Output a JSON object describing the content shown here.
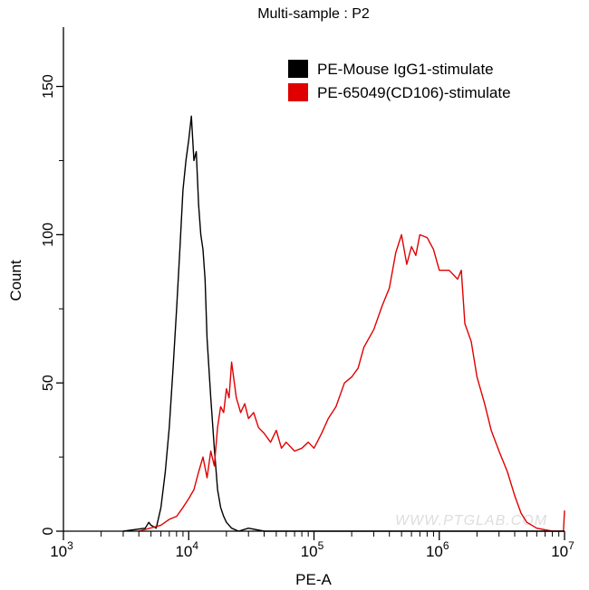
{
  "chart_data": {
    "type": "line",
    "title": "Multi-sample : P2",
    "xlabel": "PE-A",
    "ylabel": "Count",
    "xscale": "log",
    "xlim": [
      1000,
      10000000
    ],
    "ylim": [
      0,
      170
    ],
    "x_ticks": [
      {
        "value": 1000,
        "base": "10",
        "exp": "3"
      },
      {
        "value": 10000,
        "base": "10",
        "exp": "4"
      },
      {
        "value": 100000,
        "base": "10",
        "exp": "5"
      },
      {
        "value": 1000000,
        "base": "10",
        "exp": "6"
      },
      {
        "value": 10000000,
        "base": "10",
        "exp": "7"
      }
    ],
    "y_ticks": [
      0,
      50,
      100,
      150
    ],
    "grid": false,
    "legend_position": "top-right",
    "watermark": "WWW.PTGLAB.COM",
    "series": [
      {
        "name": "PE-Mouse IgG1-stimulate",
        "color": "#000000",
        "points": [
          [
            3000,
            0
          ],
          [
            4500,
            1
          ],
          [
            4800,
            3
          ],
          [
            5000,
            2
          ],
          [
            5500,
            1
          ],
          [
            6000,
            8
          ],
          [
            6500,
            20
          ],
          [
            7000,
            35
          ],
          [
            7500,
            55
          ],
          [
            8000,
            75
          ],
          [
            8500,
            95
          ],
          [
            9000,
            115
          ],
          [
            9500,
            125
          ],
          [
            10000,
            132
          ],
          [
            10500,
            140
          ],
          [
            11000,
            125
          ],
          [
            11500,
            128
          ],
          [
            12000,
            110
          ],
          [
            12500,
            100
          ],
          [
            13000,
            95
          ],
          [
            13500,
            85
          ],
          [
            14000,
            65
          ],
          [
            15000,
            45
          ],
          [
            16000,
            28
          ],
          [
            17000,
            14
          ],
          [
            18000,
            8
          ],
          [
            19000,
            5
          ],
          [
            20000,
            3
          ],
          [
            22000,
            1
          ],
          [
            25000,
            0
          ],
          [
            30000,
            1
          ],
          [
            40000,
            0
          ],
          [
            10000000,
            0
          ]
        ]
      },
      {
        "name": "PE-65049(CD106)-stimulate",
        "color": "#e00000",
        "points": [
          [
            4000,
            0
          ],
          [
            6000,
            2
          ],
          [
            7000,
            4
          ],
          [
            8000,
            5
          ],
          [
            9000,
            8
          ],
          [
            10000,
            11
          ],
          [
            11000,
            14
          ],
          [
            12000,
            20
          ],
          [
            13000,
            25
          ],
          [
            14000,
            18
          ],
          [
            15000,
            27
          ],
          [
            16000,
            22
          ],
          [
            17000,
            35
          ],
          [
            18000,
            42
          ],
          [
            19000,
            40
          ],
          [
            20000,
            48
          ],
          [
            21000,
            45
          ],
          [
            22000,
            57
          ],
          [
            24000,
            45
          ],
          [
            26000,
            40
          ],
          [
            28000,
            43
          ],
          [
            30000,
            38
          ],
          [
            33000,
            40
          ],
          [
            36000,
            35
          ],
          [
            40000,
            33
          ],
          [
            45000,
            30
          ],
          [
            50000,
            34
          ],
          [
            55000,
            28
          ],
          [
            60000,
            30
          ],
          [
            70000,
            27
          ],
          [
            80000,
            28
          ],
          [
            90000,
            30
          ],
          [
            100000,
            28
          ],
          [
            115000,
            33
          ],
          [
            130000,
            38
          ],
          [
            150000,
            42
          ],
          [
            175000,
            50
          ],
          [
            200000,
            52
          ],
          [
            225000,
            55
          ],
          [
            250000,
            62
          ],
          [
            300000,
            68
          ],
          [
            350000,
            76
          ],
          [
            400000,
            82
          ],
          [
            450000,
            94
          ],
          [
            500000,
            100
          ],
          [
            550000,
            90
          ],
          [
            600000,
            96
          ],
          [
            650000,
            93
          ],
          [
            700000,
            100
          ],
          [
            800000,
            99
          ],
          [
            900000,
            95
          ],
          [
            1000000,
            88
          ],
          [
            1200000,
            88
          ],
          [
            1400000,
            85
          ],
          [
            1500000,
            88
          ],
          [
            1600000,
            70
          ],
          [
            1800000,
            64
          ],
          [
            2000000,
            52
          ],
          [
            2300000,
            43
          ],
          [
            2600000,
            34
          ],
          [
            3000000,
            27
          ],
          [
            3500000,
            20
          ],
          [
            4000000,
            12
          ],
          [
            4500000,
            6
          ],
          [
            5000000,
            3
          ],
          [
            6000000,
            1
          ],
          [
            8000000,
            0
          ],
          [
            9800000,
            0
          ],
          [
            10000000,
            7
          ]
        ]
      }
    ]
  }
}
